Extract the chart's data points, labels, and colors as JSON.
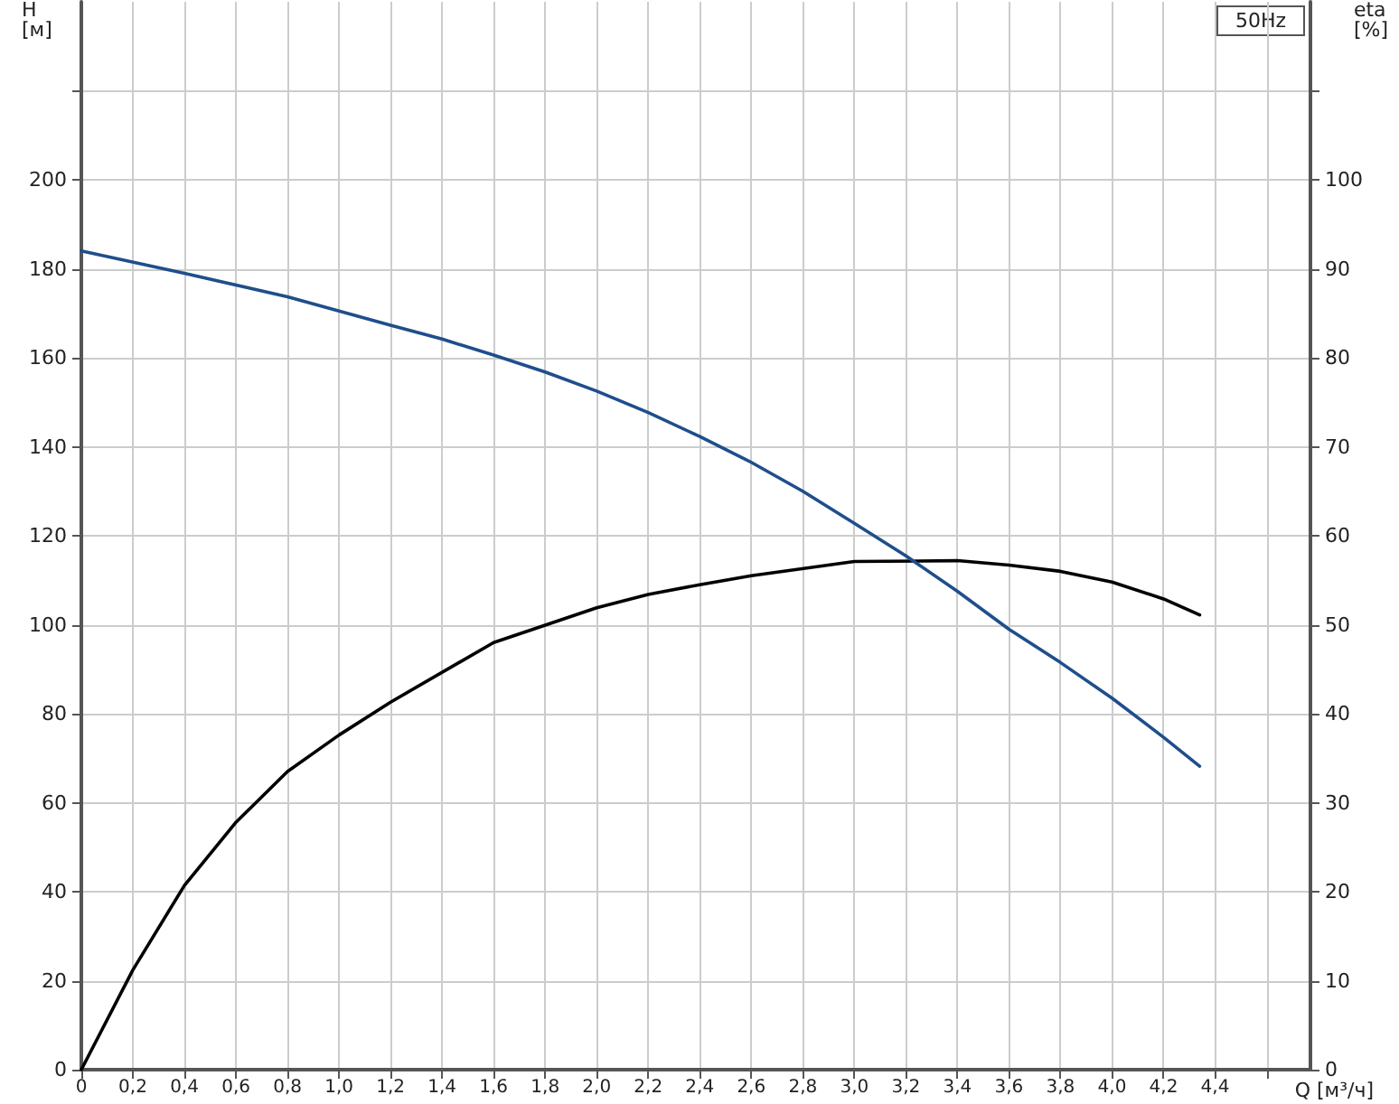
{
  "chart_data": {
    "type": "line",
    "xlabel": "Q [м³/ч]",
    "ylabel": "H\n[м]",
    "y2label": "eta\n[%]",
    "annotations": [
      "50Hz"
    ],
    "xlim": [
      0,
      4.77
    ],
    "xticks": [
      0,
      {
        "value": 0.2,
        "label": "0,2"
      },
      {
        "value": 0.4,
        "label": "0,4"
      },
      {
        "value": 0.6,
        "label": "0,6"
      },
      {
        "value": 0.8,
        "label": "0,8"
      },
      {
        "value": 1,
        "label": "1,0"
      },
      {
        "value": 1.2,
        "label": "1,2"
      },
      {
        "value": 1.4,
        "label": "1,4"
      },
      {
        "value": 1.6,
        "label": "1,6"
      },
      {
        "value": 1.8,
        "label": "1,8"
      },
      {
        "value": 2,
        "label": "2,0"
      },
      {
        "value": 2.2,
        "label": "2,2"
      },
      {
        "value": 2.4,
        "label": "2,4"
      },
      {
        "value": 2.6,
        "label": "2,6"
      },
      {
        "value": 2.8,
        "label": "2,8"
      },
      {
        "value": 3,
        "label": "3,0"
      },
      {
        "value": 3.2,
        "label": "3,2"
      },
      {
        "value": 3.4,
        "label": "3,4"
      },
      {
        "value": 3.6,
        "label": "3,6"
      },
      {
        "value": 3.8,
        "label": "3,8"
      },
      {
        "value": 4,
        "label": "4,0"
      },
      {
        "value": 4.2,
        "label": "4,2"
      },
      {
        "value": 4.4,
        "label": "4,4"
      },
      {
        "value": 4.6,
        "label": null
      }
    ],
    "ylim": [
      0,
      240
    ],
    "yticks": [
      0,
      20,
      40,
      60,
      80,
      100,
      120,
      140,
      160,
      180,
      200,
      {
        "value": 220,
        "label": null
      }
    ],
    "y2lim": [
      0,
      120
    ],
    "y2ticks": [
      0,
      10,
      20,
      30,
      40,
      50,
      60,
      70,
      80,
      90,
      100,
      {
        "value": 110,
        "label": null
      }
    ],
    "grid": true,
    "marker": "none",
    "line_style": "solid",
    "series": [
      {
        "color": "#1f4e8c",
        "x": [
          0,
          0.4,
          0.8,
          1.2,
          1.4,
          1.6,
          1.8,
          2.0,
          2.2,
          2.4,
          2.6,
          2.8,
          3.0,
          3.2,
          3.4,
          3.6,
          3.8,
          4.0,
          4.2,
          4.34
        ],
        "values": [
          184,
          179,
          173.7,
          167.3,
          164.2,
          160.6,
          156.8,
          152.5,
          147.7,
          142.3,
          136.5,
          130,
          122.8,
          115.5,
          107.5,
          99,
          91.5,
          83.5,
          74.7,
          68.2
        ]
      },
      {
        "color": "#000000",
        "axis": "y2",
        "x": [
          0,
          0.2,
          0.4,
          0.6,
          0.8,
          1.0,
          1.2,
          1.6,
          2.0,
          2.2,
          2.4,
          2.6,
          3.0,
          3.4,
          3.6,
          3.8,
          4.0,
          4.2,
          4.34
        ],
        "values": [
          0,
          11.2,
          20.7,
          27.8,
          33.5,
          37.6,
          41.3,
          48,
          51.9,
          53.4,
          54.5,
          55.5,
          57.1,
          57.2,
          56.7,
          56,
          54.8,
          52.9,
          51.1
        ]
      }
    ]
  }
}
